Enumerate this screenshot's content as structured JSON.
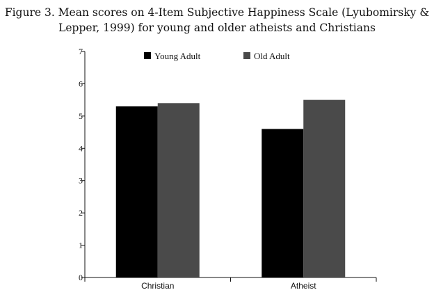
{
  "title_line1": "Figure 3. Mean scores on 4-Item Subjective Happiness Scale (Lyubomirsky &",
  "title_line2": "Lepper, 1999) for young and older atheists and Christians",
  "chart_data": {
    "type": "bar",
    "title": "Figure 3. Mean scores on 4-Item Subjective Happiness Scale (Lyubomirsky & Lepper, 1999) for young and older atheists and Christians",
    "xlabel": "",
    "ylabel": "",
    "categories": [
      "Christian",
      "Atheist"
    ],
    "series": [
      {
        "name": "Young Adult",
        "values": [
          5.3,
          4.6
        ],
        "color": "#000000"
      },
      {
        "name": "Old Adult",
        "values": [
          5.4,
          5.5
        ],
        "color": "#4a4a4a"
      }
    ],
    "ylim": [
      0,
      7
    ],
    "yticks": [
      0,
      1,
      2,
      3,
      4,
      5,
      6,
      7
    ],
    "grid": false,
    "legend": "top"
  }
}
